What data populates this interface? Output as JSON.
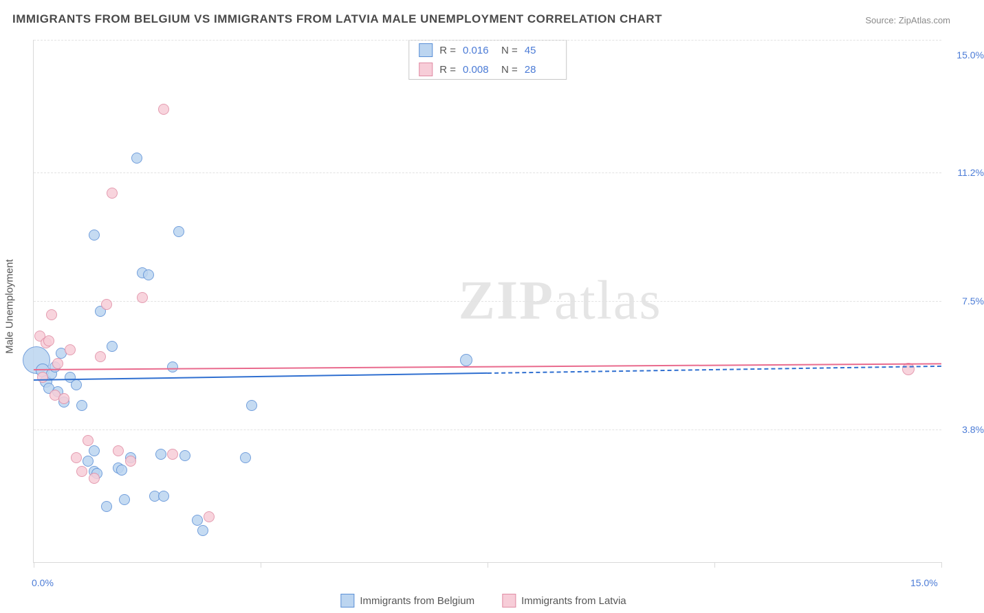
{
  "title": "IMMIGRANTS FROM BELGIUM VS IMMIGRANTS FROM LATVIA MALE UNEMPLOYMENT CORRELATION CHART",
  "source": "Source: ZipAtlas.com",
  "watermark_a": "ZIP",
  "watermark_b": "atlas",
  "ylabel": "Male Unemployment",
  "chart": {
    "type": "scatter-correlation",
    "background_color": "#ffffff",
    "grid_color": "#e2e2e2",
    "axis_color": "#d9d9d9",
    "label_color": "#4b7bd6",
    "title_color": "#4a4a4a",
    "title_fontsize": 17,
    "label_fontsize": 14,
    "xlim": [
      0,
      15
    ],
    "ylim": [
      0,
      15
    ],
    "y_gridlines": [
      0,
      3.8,
      7.5,
      11.2,
      15.0
    ],
    "y_tick_labels": [
      "",
      "3.8%",
      "7.5%",
      "11.2%",
      "15.0%"
    ],
    "x_tick_positions": [
      0,
      3.75,
      7.5,
      11.25,
      15
    ],
    "x_min_label": "0.0%",
    "x_max_label": "15.0%",
    "marker_base_radius": 8,
    "marker_stroke_width": 1.5,
    "trend_line_width": 2
  },
  "series": [
    {
      "name": "Immigrants from Belgium",
      "fill": "#bcd5f0",
      "stroke": "#5a8fd6",
      "line_color": "#2f6fd0",
      "R": "0.016",
      "N": "45",
      "trend": {
        "y_at_xmin": 5.25,
        "y_at_xmax": 5.65,
        "solid_until_x": 7.5
      },
      "points": [
        {
          "x": 0.05,
          "y": 5.8,
          "r": 20
        },
        {
          "x": 0.15,
          "y": 5.5,
          "r": 10
        },
        {
          "x": 0.2,
          "y": 5.2,
          "r": 9
        },
        {
          "x": 0.25,
          "y": 5.0,
          "r": 8
        },
        {
          "x": 0.3,
          "y": 5.4,
          "r": 8
        },
        {
          "x": 0.35,
          "y": 5.6,
          "r": 8
        },
        {
          "x": 0.4,
          "y": 4.9,
          "r": 8
        },
        {
          "x": 0.45,
          "y": 6.0,
          "r": 8
        },
        {
          "x": 0.5,
          "y": 4.6,
          "r": 8
        },
        {
          "x": 0.6,
          "y": 5.3,
          "r": 8
        },
        {
          "x": 0.7,
          "y": 5.1,
          "r": 8
        },
        {
          "x": 0.8,
          "y": 4.5,
          "r": 8
        },
        {
          "x": 0.9,
          "y": 2.9,
          "r": 8
        },
        {
          "x": 1.0,
          "y": 2.6,
          "r": 8
        },
        {
          "x": 1.05,
          "y": 2.55,
          "r": 8
        },
        {
          "x": 1.0,
          "y": 3.2,
          "r": 8
        },
        {
          "x": 1.1,
          "y": 7.2,
          "r": 8
        },
        {
          "x": 1.0,
          "y": 9.4,
          "r": 8
        },
        {
          "x": 1.2,
          "y": 1.6,
          "r": 8
        },
        {
          "x": 1.3,
          "y": 6.2,
          "r": 8
        },
        {
          "x": 1.4,
          "y": 2.7,
          "r": 8
        },
        {
          "x": 1.45,
          "y": 2.65,
          "r": 8
        },
        {
          "x": 1.5,
          "y": 1.8,
          "r": 8
        },
        {
          "x": 1.6,
          "y": 3.0,
          "r": 8
        },
        {
          "x": 1.7,
          "y": 11.6,
          "r": 8
        },
        {
          "x": 1.8,
          "y": 8.3,
          "r": 8
        },
        {
          "x": 1.9,
          "y": 8.25,
          "r": 8
        },
        {
          "x": 2.0,
          "y": 1.9,
          "r": 8
        },
        {
          "x": 2.1,
          "y": 3.1,
          "r": 8
        },
        {
          "x": 2.15,
          "y": 1.9,
          "r": 8
        },
        {
          "x": 2.3,
          "y": 5.6,
          "r": 8
        },
        {
          "x": 2.4,
          "y": 9.5,
          "r": 8
        },
        {
          "x": 2.5,
          "y": 3.05,
          "r": 8
        },
        {
          "x": 2.7,
          "y": 1.2,
          "r": 8
        },
        {
          "x": 2.8,
          "y": 0.9,
          "r": 8
        },
        {
          "x": 3.5,
          "y": 3.0,
          "r": 8
        },
        {
          "x": 3.6,
          "y": 4.5,
          "r": 8
        },
        {
          "x": 7.15,
          "y": 5.8,
          "r": 9
        }
      ]
    },
    {
      "name": "Immigrants from Latvia",
      "fill": "#f7cdd8",
      "stroke": "#e08ba3",
      "line_color": "#e96a8d",
      "R": "0.008",
      "N": "28",
      "trend": {
        "y_at_xmin": 5.55,
        "y_at_xmax": 5.72,
        "solid_until_x": 15
      },
      "points": [
        {
          "x": 0.1,
          "y": 6.5,
          "r": 8
        },
        {
          "x": 0.15,
          "y": 5.3,
          "r": 8
        },
        {
          "x": 0.2,
          "y": 6.3,
          "r": 8
        },
        {
          "x": 0.25,
          "y": 6.35,
          "r": 8
        },
        {
          "x": 0.3,
          "y": 7.1,
          "r": 8
        },
        {
          "x": 0.35,
          "y": 4.8,
          "r": 8
        },
        {
          "x": 0.4,
          "y": 5.7,
          "r": 8
        },
        {
          "x": 0.5,
          "y": 4.7,
          "r": 8
        },
        {
          "x": 0.6,
          "y": 6.1,
          "r": 8
        },
        {
          "x": 0.7,
          "y": 3.0,
          "r": 8
        },
        {
          "x": 0.8,
          "y": 2.6,
          "r": 8
        },
        {
          "x": 0.9,
          "y": 3.5,
          "r": 8
        },
        {
          "x": 1.0,
          "y": 2.4,
          "r": 8
        },
        {
          "x": 1.1,
          "y": 5.9,
          "r": 8
        },
        {
          "x": 1.2,
          "y": 7.4,
          "r": 8
        },
        {
          "x": 1.3,
          "y": 10.6,
          "r": 8
        },
        {
          "x": 1.4,
          "y": 3.2,
          "r": 8
        },
        {
          "x": 1.6,
          "y": 2.9,
          "r": 8
        },
        {
          "x": 1.8,
          "y": 7.6,
          "r": 8
        },
        {
          "x": 2.15,
          "y": 13.0,
          "r": 8
        },
        {
          "x": 2.3,
          "y": 3.1,
          "r": 8
        },
        {
          "x": 2.9,
          "y": 1.3,
          "r": 8
        },
        {
          "x": 14.45,
          "y": 5.55,
          "r": 9
        }
      ]
    }
  ],
  "stats_legend": {
    "r_label": "R  =",
    "n_label": "N  ="
  },
  "bottom_legend": {
    "s1": "Immigrants from Belgium",
    "s2": "Immigrants from Latvia"
  }
}
